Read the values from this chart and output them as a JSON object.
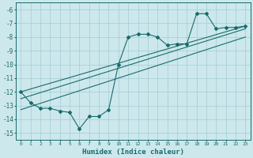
{
  "xlabel": "Humidex (Indice chaleur)",
  "bg_color": "#cce8ec",
  "line_color": "#1a6b6b",
  "grid_color": "#aad0d8",
  "xlim": [
    -0.5,
    23.5
  ],
  "ylim": [
    -15.5,
    -5.5
  ],
  "yticks": [
    -15,
    -14,
    -13,
    -12,
    -11,
    -10,
    -9,
    -8,
    -7,
    -6
  ],
  "xticks": [
    0,
    1,
    2,
    3,
    4,
    5,
    6,
    7,
    8,
    9,
    10,
    11,
    12,
    13,
    14,
    15,
    16,
    17,
    18,
    19,
    20,
    21,
    22,
    23
  ],
  "series1_x": [
    0,
    1,
    2,
    3,
    4,
    5,
    6,
    7,
    8,
    9,
    10,
    11,
    12,
    13,
    14,
    15,
    16,
    17,
    18,
    19,
    20,
    21,
    22,
    23
  ],
  "series1_y": [
    -12.0,
    -12.8,
    -13.2,
    -13.2,
    -13.4,
    -13.5,
    -14.7,
    -13.8,
    -13.8,
    -13.3,
    -10.0,
    -8.0,
    -7.8,
    -7.8,
    -8.0,
    -8.6,
    -8.5,
    -8.5,
    -6.3,
    -6.3,
    -7.4,
    -7.3,
    -7.3,
    -7.2
  ],
  "line2_x": [
    0,
    23
  ],
  "line2_y": [
    -12.0,
    -7.2
  ],
  "line3_x": [
    0,
    23
  ],
  "line3_y": [
    -12.5,
    -7.4
  ],
  "line4_x": [
    0,
    23
  ],
  "line4_y": [
    -13.3,
    -8.0
  ]
}
